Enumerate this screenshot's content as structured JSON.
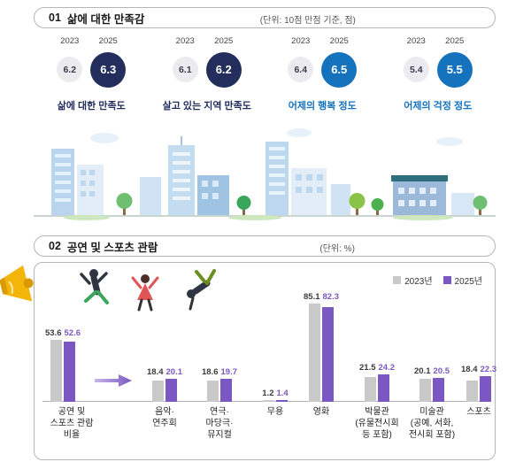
{
  "section1": {
    "number": "01",
    "title": "삶에 대한 만족감",
    "unit": "(단위: 10점 만점 기준, 점)",
    "groups": [
      {
        "label": "삶에 대한 만족도",
        "year_prev": "2023",
        "year_curr": "2025",
        "prev": "6.2",
        "curr": "6.3",
        "theme": "navy"
      },
      {
        "label": "살고 있는 지역 만족도",
        "year_prev": "2023",
        "year_curr": "2025",
        "prev": "6.1",
        "curr": "6.2",
        "theme": "navy"
      },
      {
        "label": "어제의 행복 정도",
        "year_prev": "2023",
        "year_curr": "2025",
        "prev": "6.4",
        "curr": "6.5",
        "theme": "blue"
      },
      {
        "label": "어제의 걱정 정도",
        "year_prev": "2023",
        "year_curr": "2025",
        "prev": "5.4",
        "curr": "5.5",
        "theme": "blue"
      }
    ]
  },
  "section2": {
    "number": "02",
    "title": "공연 및 스포츠 관람",
    "unit": "(단위: %)",
    "legend": [
      {
        "label": "2023년",
        "color": "#c9c9c9"
      },
      {
        "label": "2025년",
        "color": "#7b57c2"
      }
    ],
    "display_labels": [
      "공연 및\n스포츠 관람\n비율",
      "음악·\n연주회",
      "연극·\n마당극·\n뮤지컬",
      "무용",
      "영화",
      "박물관\n(유물전시회\n등 포함)",
      "미술관\n(공예, 서화,\n전시회 포함)",
      "스포츠"
    ]
  },
  "chart_data": [
    {
      "type": "bar",
      "title": "삶에 대한 만족감",
      "unit": "점(10점 만점 기준)",
      "categories": [
        "삶에 대한 만족도",
        "살고 있는 지역 만족도",
        "어제의 행복 정도",
        "어제의 걱정 정도"
      ],
      "series": [
        {
          "name": "2023",
          "values": [
            6.2,
            6.1,
            6.4,
            5.4
          ]
        },
        {
          "name": "2025",
          "values": [
            6.3,
            6.2,
            6.5,
            5.5
          ]
        }
      ],
      "ylim": [
        0,
        10
      ]
    },
    {
      "type": "bar",
      "title": "공연 및 스포츠 관람",
      "unit": "%",
      "categories": [
        "공연 및 스포츠 관람 비율",
        "음악·연주회",
        "연극·마당극·뮤지컬",
        "무용",
        "영화",
        "박물관(유물전시회 등 포함)",
        "미술관(공예, 서화, 전시회 포함)",
        "스포츠"
      ],
      "series": [
        {
          "name": "2023년",
          "values": [
            53.6,
            18.4,
            18.6,
            1.2,
            85.1,
            21.5,
            20.1,
            18.4
          ]
        },
        {
          "name": "2025년",
          "values": [
            52.6,
            20.1,
            19.7,
            1.4,
            82.3,
            24.2,
            20.5,
            22.3
          ]
        }
      ],
      "legend_position": "top-right",
      "ylim": [
        0,
        90
      ]
    }
  ]
}
